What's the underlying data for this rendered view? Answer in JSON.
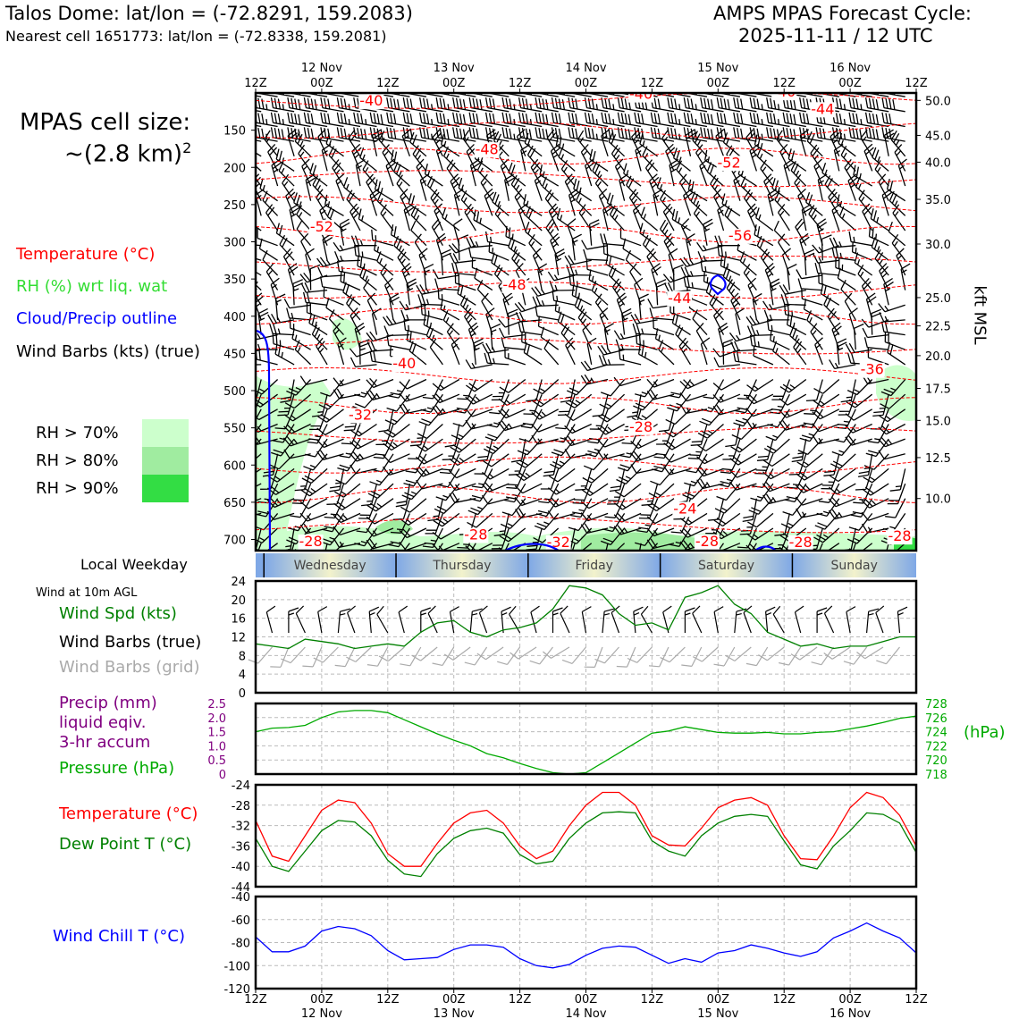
{
  "header": {
    "station": "Talos Dome: lat/lon = (-72.8291, 159.2083)",
    "nearest": "Nearest cell 1651773: lat/lon = (-72.8338, 159.2081)",
    "cycle_line1": "AMPS MPAS Forecast Cycle:",
    "cycle_line2": "2025-11-11 / 12 UTC"
  },
  "legend": {
    "cell_size_1": "MPAS cell size:",
    "cell_size_2": "~(2.8 km)",
    "cell_size_sup": "2",
    "temperature": "Temperature (°C)",
    "rh": "RH (%) wrt liq. wat",
    "cloud": "Cloud/Precip outline",
    "barbs": "Wind Barbs (kts) (true)",
    "rh70": "RH > 70%",
    "rh80": "RH > 80%",
    "rh90": "RH > 90%",
    "local_weekday": "Local Weekday",
    "wind10m": "Wind at 10m AGL",
    "wind_spd": "Wind Spd (kts)",
    "wind_barbs_true": "Wind Barbs (true)",
    "wind_barbs_grid": "Wind Barbs (grid)",
    "precip1": "Precip (mm)",
    "precip2": "liquid eqiv.",
    "precip3": "3-hr accum",
    "pressure": "Pressure (hPa)",
    "temp2": "Temperature (°C)",
    "dewpoint": "Dew Point T (°C)",
    "windchill": "Wind Chill T (°C)",
    "kft": "kft MSL",
    "hpa_unit": "(hPa)"
  },
  "colors": {
    "temperature": "#ff0000",
    "rh": "#33dd33",
    "cloud": "#0000ff",
    "rh70": "#ccffcc",
    "rh80": "#a0eca0",
    "rh90": "#33dd44",
    "wind_spd": "#008000",
    "precip": "#800080",
    "pressure": "#00aa00",
    "dewpoint": "#008000",
    "windchill": "#0000ff",
    "grid_barb": "#aaaaaa"
  },
  "axes": {
    "time_hours": [
      0,
      12,
      24,
      36,
      48,
      60,
      72,
      84,
      96,
      108,
      120
    ],
    "time_labels": [
      "12Z",
      "00Z",
      "12Z",
      "00Z",
      "12Z",
      "00Z",
      "12Z",
      "00Z",
      "12Z",
      "00Z",
      "12Z"
    ],
    "date_labels": [
      {
        "hour": 12,
        "text": "12 Nov"
      },
      {
        "hour": 36,
        "text": "13 Nov"
      },
      {
        "hour": 60,
        "text": "14 Nov"
      },
      {
        "hour": 84,
        "text": "15 Nov"
      },
      {
        "hour": 108,
        "text": "16 Nov"
      }
    ],
    "weekdays": [
      {
        "start": 1.5,
        "end": 25.5,
        "label": "Wednesday"
      },
      {
        "start": 25.5,
        "end": 49.5,
        "label": "Thursday"
      },
      {
        "start": 49.5,
        "end": 73.5,
        "label": "Friday"
      },
      {
        "start": 73.5,
        "end": 97.5,
        "label": "Saturday"
      },
      {
        "start": 97.5,
        "end": 120,
        "label": "Sunday"
      }
    ]
  },
  "chart_data": [
    {
      "type": "heatmap",
      "panel": "cross-section",
      "x_hours": [
        0,
        120
      ],
      "pressure_levels_hpa": [
        150,
        200,
        250,
        300,
        350,
        400,
        450,
        500,
        550,
        600,
        650,
        700
      ],
      "ylim_hpa": [
        100,
        715
      ],
      "height_ticks_kft": [
        "10.0",
        "12.5",
        "15.0",
        "17.5",
        "20.0",
        "22.5",
        "25.0",
        "30.0",
        "35.0",
        "40.0",
        "45.0",
        "50.0"
      ],
      "temperature_contours": [
        {
          "label": "-40",
          "hour": 21,
          "p": 117
        },
        {
          "label": "-40",
          "hour": 70,
          "p": 108
        },
        {
          "label": "-40",
          "hour": 96,
          "p": 105
        },
        {
          "label": "-44",
          "hour": 103,
          "p": 128
        },
        {
          "label": "-48",
          "hour": 42,
          "p": 182
        },
        {
          "label": "-52",
          "hour": 86,
          "p": 200
        },
        {
          "label": "-52",
          "hour": 12,
          "p": 286
        },
        {
          "label": "-56",
          "hour": 88,
          "p": 298
        },
        {
          "label": "-48",
          "hour": 47,
          "p": 364
        },
        {
          "label": "-44",
          "hour": 77,
          "p": 382
        },
        {
          "label": "-40",
          "hour": 27,
          "p": 470
        },
        {
          "label": "-36",
          "hour": 112,
          "p": 478
        },
        {
          "label": "-32",
          "hour": 19,
          "p": 539
        },
        {
          "label": "-28",
          "hour": 70,
          "p": 555
        },
        {
          "label": "-24",
          "hour": 78,
          "p": 665
        },
        {
          "label": "-28",
          "hour": 10,
          "p": 709
        },
        {
          "label": "-28",
          "hour": 40,
          "p": 700
        },
        {
          "label": "-32",
          "hour": 55,
          "p": 710
        },
        {
          "label": "-28",
          "hour": 82,
          "p": 709
        },
        {
          "label": "-28",
          "hour": 99,
          "p": 710
        },
        {
          "label": "-28",
          "hour": 117,
          "p": 702
        }
      ]
    },
    {
      "type": "line",
      "panel": "wind",
      "ylim": [
        0,
        24
      ],
      "yticks": [
        0,
        4,
        8,
        12,
        16,
        20,
        24
      ],
      "x": [
        0,
        3,
        6,
        9,
        12,
        15,
        18,
        21,
        24,
        27,
        30,
        33,
        36,
        39,
        42,
        45,
        48,
        51,
        54,
        57,
        60,
        63,
        66,
        69,
        72,
        75,
        78,
        81,
        84,
        87,
        90,
        93,
        96,
        99,
        102,
        105,
        108,
        111,
        114,
        117,
        120
      ],
      "series": [
        {
          "name": "Wind Spd (kts)",
          "values": [
            10.5,
            10,
            9.5,
            11.5,
            11,
            10.5,
            9.5,
            10,
            10.5,
            10,
            13,
            15,
            15.5,
            13,
            12,
            13.5,
            14,
            15,
            18,
            23,
            22.5,
            21,
            17,
            14.5,
            15,
            13.5,
            20.5,
            21.5,
            23,
            19,
            17,
            13,
            11.5,
            10,
            10.5,
            9.5,
            10,
            10,
            11,
            12,
            12
          ]
        }
      ]
    },
    {
      "type": "line",
      "panel": "precip-pressure",
      "ylim_precip_mm": [
        0,
        2.5
      ],
      "yticks_precip": [
        "0",
        "0.5",
        "1.0",
        "1.5",
        "2.0",
        "2.5"
      ],
      "ylim_pressure_hpa": [
        718,
        728
      ],
      "yticks_pressure": [
        "718",
        "720",
        "722",
        "724",
        "726",
        "728"
      ],
      "x": [
        0,
        3,
        6,
        9,
        12,
        15,
        18,
        21,
        24,
        27,
        30,
        33,
        36,
        39,
        42,
        45,
        48,
        51,
        54,
        57,
        60,
        63,
        66,
        69,
        72,
        75,
        78,
        81,
        84,
        87,
        90,
        93,
        96,
        99,
        102,
        105,
        108,
        111,
        114,
        117,
        120
      ],
      "series": [
        {
          "name": "Pressure (hPa)",
          "values": [
            724,
            724.5,
            724.6,
            724.9,
            726.0,
            726.8,
            727.0,
            727.0,
            726.7,
            725.7,
            724.7,
            723.7,
            722.8,
            722.0,
            720.9,
            720.3,
            719.5,
            718.8,
            718.2,
            718.0,
            718.2,
            719.6,
            721.0,
            722.4,
            723.8,
            724.1,
            724.7,
            724.3,
            723.9,
            723.8,
            723.8,
            723.9,
            723.7,
            723.7,
            723.9,
            724.0,
            724.4,
            724.8,
            725.3,
            725.9,
            726.2
          ]
        }
      ]
    },
    {
      "type": "line",
      "panel": "temperature",
      "ylim": [
        -44,
        -24
      ],
      "yticks": [
        -44,
        -40,
        -36,
        -32,
        -28,
        -24
      ],
      "x": [
        0,
        3,
        6,
        9,
        12,
        15,
        18,
        21,
        24,
        27,
        30,
        33,
        36,
        39,
        42,
        45,
        48,
        51,
        54,
        57,
        60,
        63,
        66,
        69,
        72,
        75,
        78,
        81,
        84,
        87,
        90,
        93,
        96,
        99,
        102,
        105,
        108,
        111,
        114,
        117,
        120
      ],
      "series": [
        {
          "name": "Temperature (°C)",
          "values": [
            -31,
            -38,
            -39,
            -34,
            -29,
            -27,
            -27.5,
            -31.5,
            -37.5,
            -40,
            -40,
            -35.5,
            -31.5,
            -29.5,
            -29,
            -31.5,
            -36,
            -38.5,
            -37,
            -32,
            -28,
            -25.5,
            -25.5,
            -28,
            -34,
            -35.8,
            -36,
            -32.5,
            -28.5,
            -27,
            -26.5,
            -28,
            -34,
            -38.5,
            -38.7,
            -34,
            -28.5,
            -25.5,
            -26.5,
            -30,
            -36
          ]
        },
        {
          "name": "Dew Point T (°C)",
          "values": [
            -34.5,
            -40,
            -41,
            -37,
            -33,
            -31,
            -31.3,
            -34,
            -38.8,
            -41.5,
            -42,
            -37.5,
            -34.5,
            -33,
            -32.5,
            -33.5,
            -37.7,
            -39.5,
            -39,
            -34.5,
            -31.5,
            -29.5,
            -29.3,
            -29.5,
            -35,
            -37,
            -38,
            -34,
            -31.5,
            -30.2,
            -29.8,
            -30.2,
            -35,
            -39.7,
            -40.5,
            -36,
            -33,
            -29.5,
            -29.8,
            -31.5,
            -37.3
          ]
        }
      ]
    },
    {
      "type": "line",
      "panel": "windchill",
      "ylim": [
        -120,
        -40
      ],
      "yticks": [
        -120,
        -100,
        -80,
        -60,
        -40
      ],
      "x": [
        0,
        3,
        6,
        9,
        12,
        15,
        18,
        21,
        24,
        27,
        30,
        33,
        36,
        39,
        42,
        45,
        48,
        51,
        54,
        57,
        60,
        63,
        66,
        69,
        72,
        75,
        78,
        81,
        84,
        87,
        90,
        93,
        96,
        99,
        102,
        105,
        108,
        111,
        114,
        117,
        120
      ],
      "series": [
        {
          "name": "Wind Chill T (°C)",
          "values": [
            -75,
            -88,
            -88,
            -83,
            -70,
            -66,
            -68,
            -74,
            -87,
            -95,
            -94,
            -93,
            -86,
            -82,
            -82,
            -84,
            -94,
            -100,
            -102,
            -99,
            -91,
            -85,
            -83,
            -84,
            -91,
            -98,
            -94,
            -97,
            -89,
            -87,
            -82,
            -85,
            -89,
            -92,
            -88,
            -76,
            -70,
            -63,
            -70,
            -76,
            -89
          ]
        }
      ]
    }
  ]
}
